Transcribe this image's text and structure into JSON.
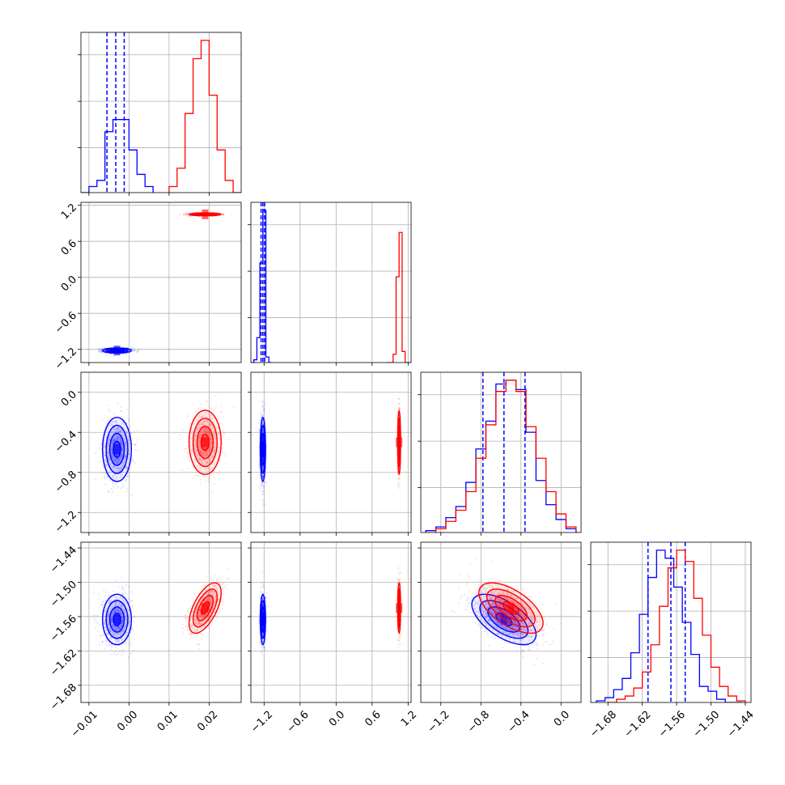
{
  "chart_data": {
    "type": "corner",
    "grid": true,
    "colors": {
      "series_a": "#0000ff",
      "series_b": "#ff0000"
    },
    "parameters": [
      {
        "range": [
          -0.012,
          0.028
        ],
        "ticks": [
          -0.01,
          0.0,
          0.01,
          0.02
        ],
        "tick_labels": [
          "−0.01",
          "0.00",
          "0.01",
          "0.02"
        ]
      },
      {
        "range": [
          -1.42,
          1.25
        ],
        "ticks": [
          -1.2,
          -0.6,
          0.0,
          0.6,
          1.2
        ],
        "tick_labels": [
          "−1.2",
          "−0.6",
          "0.0",
          "0.6",
          "1.2"
        ]
      },
      {
        "range": [
          -1.4,
          0.2
        ],
        "ticks": [
          -1.2,
          -0.8,
          -0.4,
          0.0
        ],
        "tick_labels": [
          "−1.2",
          "−0.8",
          "−0.4",
          "0.0"
        ]
      },
      {
        "range": [
          -1.71,
          -1.43
        ],
        "ticks": [
          -1.68,
          -1.62,
          -1.56,
          -1.5,
          -1.44
        ],
        "tick_labels": [
          "−1.68",
          "−1.62",
          "−1.56",
          "−1.50",
          "−1.44"
        ]
      }
    ],
    "series": [
      {
        "color": "#0000ff",
        "means": [
          -0.003,
          -1.22,
          -0.57,
          -1.565
        ],
        "sigmas": [
          0.0018,
          0.022,
          0.16,
          0.022
        ],
        "correlations": {
          "0-1": 0.0,
          "0-2": 0.0,
          "0-3": 0.0,
          "1-2": 0.0,
          "1-3": 0.0,
          "2-3": -0.6
        },
        "quantiles": [
          [
            -0.0055,
            -0.0033,
            -0.0012
          ],
          [
            -1.25,
            -1.22,
            -1.19
          ],
          [
            -0.78,
            -0.57,
            -0.36
          ],
          [
            -1.61,
            -1.57,
            -1.545
          ]
        ],
        "histograms": [
          {
            "edges": [
              -0.012,
              -0.01,
              -0.008,
              -0.006,
              -0.004,
              -0.002,
              0.0,
              0.002,
              0.004,
              0.006
            ],
            "counts": [
              0,
              1,
              2,
              10,
              12,
              12,
              7,
              3,
              1
            ]
          },
          {
            "edges": [
              -1.42,
              -1.37,
              -1.32,
              -1.27,
              -1.22,
              -1.17,
              -1.12,
              -1.07
            ],
            "counts": [
              0,
              1,
              9,
              36,
              55,
              2,
              0
            ]
          },
          {
            "edges": [
              -1.35,
              -1.25,
              -1.15,
              -1.05,
              -0.95,
              -0.85,
              -0.75,
              -0.65,
              -0.55,
              -0.45,
              -0.35,
              -0.25,
              -0.15,
              -0.05,
              0.05,
              0.15
            ],
            "counts": [
              1,
              3,
              8,
              14,
              27,
              45,
              60,
              80,
              82,
              77,
              54,
              28,
              15,
              7,
              2
            ]
          },
          {
            "edges": [
              -1.7,
              -1.685,
              -1.67,
              -1.655,
              -1.64,
              -1.625,
              -1.61,
              -1.595,
              -1.58,
              -1.565,
              -1.55,
              -1.535,
              -1.52,
              -1.505,
              -1.49,
              -1.475,
              -1.46,
              -1.445
            ],
            "counts": [
              1,
              3,
              8,
              15,
              31,
              55,
              78,
              95,
              90,
              72,
              50,
              30,
              10,
              7,
              2,
              0,
              0
            ]
          }
        ]
      },
      {
        "color": "#ff0000",
        "means": [
          0.019,
          1.05,
          -0.5,
          -1.545
        ],
        "sigmas": [
          0.002,
          0.012,
          0.16,
          0.022
        ],
        "correlations": {
          "0-1": 0.0,
          "0-2": 0.0,
          "0-3": 0.6,
          "1-2": 0.0,
          "1-3": 0.0,
          "2-3": -0.6
        },
        "quantiles": [],
        "histograms": [
          {
            "edges": [
              0.01,
              0.012,
              0.014,
              0.016,
              0.018,
              0.02,
              0.022,
              0.024,
              0.026,
              0.028
            ],
            "counts": [
              1,
              4,
              13,
              22,
              25,
              16,
              7,
              2,
              0
            ]
          },
          {
            "edges": [
              0.85,
              0.9,
              0.95,
              1.0,
              1.05,
              1.1,
              1.15,
              1.2,
              1.25
            ],
            "counts": [
              0,
              0,
              3,
              31,
              47,
              4,
              0,
              0
            ]
          },
          {
            "edges": [
              -1.25,
              -1.15,
              -1.05,
              -0.95,
              -0.85,
              -0.75,
              -0.65,
              -0.55,
              -0.45,
              -0.35,
              -0.25,
              -0.15,
              -0.05,
              0.05,
              0.15
            ],
            "counts": [
              2,
              6,
              12,
              22,
              40,
              58,
              76,
              82,
              76,
              57,
              40,
              22,
              10,
              3,
              1
            ]
          },
          {
            "edges": [
              -1.68,
              -1.665,
              -1.65,
              -1.635,
              -1.62,
              -1.605,
              -1.59,
              -1.575,
              -1.56,
              -1.545,
              -1.53,
              -1.515,
              -1.5,
              -1.485,
              -1.47,
              -1.455,
              -1.44
            ],
            "counts": [
              0,
              2,
              4,
              9,
              19,
              36,
              60,
              84,
              95,
              88,
              65,
              42,
              22,
              10,
              4,
              1
            ]
          }
        ]
      }
    ]
  }
}
